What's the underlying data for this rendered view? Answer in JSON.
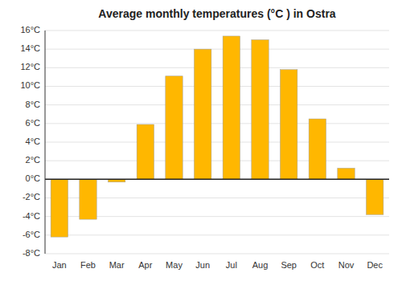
{
  "chart_data": {
    "type": "bar",
    "title": "Average monthly temperatures (°C ) in Ostra",
    "categories": [
      "Jan",
      "Feb",
      "Mar",
      "Apr",
      "May",
      "Jun",
      "Jul",
      "Aug",
      "Sep",
      "Oct",
      "Nov",
      "Dec"
    ],
    "values": [
      -6.2,
      -4.3,
      -0.3,
      5.9,
      11.1,
      14.0,
      15.4,
      15.0,
      11.8,
      6.5,
      1.2,
      -3.8
    ],
    "color": "#FFB700",
    "ylim": [
      -8,
      16
    ],
    "yticks": [
      {
        "value": -8,
        "label": "-8°C"
      },
      {
        "value": -6,
        "label": "-6°C"
      },
      {
        "value": -4,
        "label": "-4°C"
      },
      {
        "value": -2,
        "label": "-2°C"
      },
      {
        "value": 0,
        "label": "0°C"
      },
      {
        "value": 2,
        "label": "2°C"
      },
      {
        "value": 4,
        "label": "4°C"
      },
      {
        "value": 6,
        "label": "6°C"
      },
      {
        "value": 8,
        "label": "8°C"
      },
      {
        "value": 10,
        "label": "10°C"
      },
      {
        "value": 12,
        "label": "12°C"
      },
      {
        "value": 14,
        "label": "14°C"
      },
      {
        "value": 16,
        "label": "16°C"
      }
    ],
    "grid": true
  }
}
